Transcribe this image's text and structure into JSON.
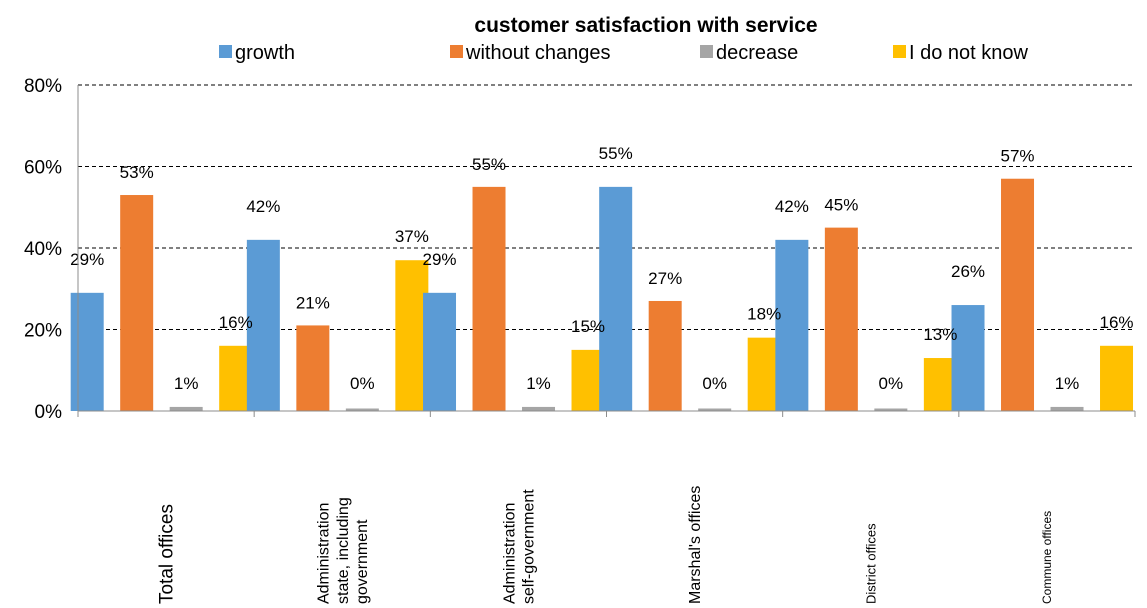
{
  "chart_data": {
    "type": "bar",
    "title": "customer satisfaction with service",
    "categories": [
      [
        "Total offices"
      ],
      [
        "Administration",
        "state, including",
        "government"
      ],
      [
        "Administration",
        "self-government"
      ],
      [
        "Marshal's offices"
      ],
      [
        "District offices"
      ],
      [
        "Commune offices"
      ]
    ],
    "series": [
      {
        "name": "growth",
        "color": "#5b9bd5",
        "values": [
          29,
          42,
          29,
          55,
          42,
          26
        ],
        "labels": [
          "29%",
          "42%",
          "29%",
          "55%",
          "42%",
          "26%"
        ]
      },
      {
        "name": "without changes",
        "color": "#ed7d31",
        "values": [
          53,
          21,
          55,
          27,
          45,
          57
        ],
        "labels": [
          "53%",
          "21%",
          "55%",
          "27%",
          "45%",
          "57%"
        ]
      },
      {
        "name": "decrease",
        "color": "#a5a5a5",
        "values": [
          1,
          0,
          1,
          0,
          0,
          1
        ],
        "labels": [
          "1%",
          "0%",
          "1%",
          "0%",
          "0%",
          "1%"
        ]
      },
      {
        "name": "I do not know",
        "color": "#ffc000",
        "values": [
          16,
          37,
          15,
          18,
          13,
          16
        ],
        "labels": [
          "16%",
          "37%",
          "15%",
          "18%",
          "13%",
          "16%"
        ]
      }
    ],
    "ylim": [
      0,
      80
    ],
    "yticks": [
      0,
      20,
      40,
      60,
      80
    ],
    "ytick_labels": [
      "0%",
      "20%",
      "40%",
      "60%",
      "80%"
    ],
    "grid": true,
    "legend": "top"
  }
}
